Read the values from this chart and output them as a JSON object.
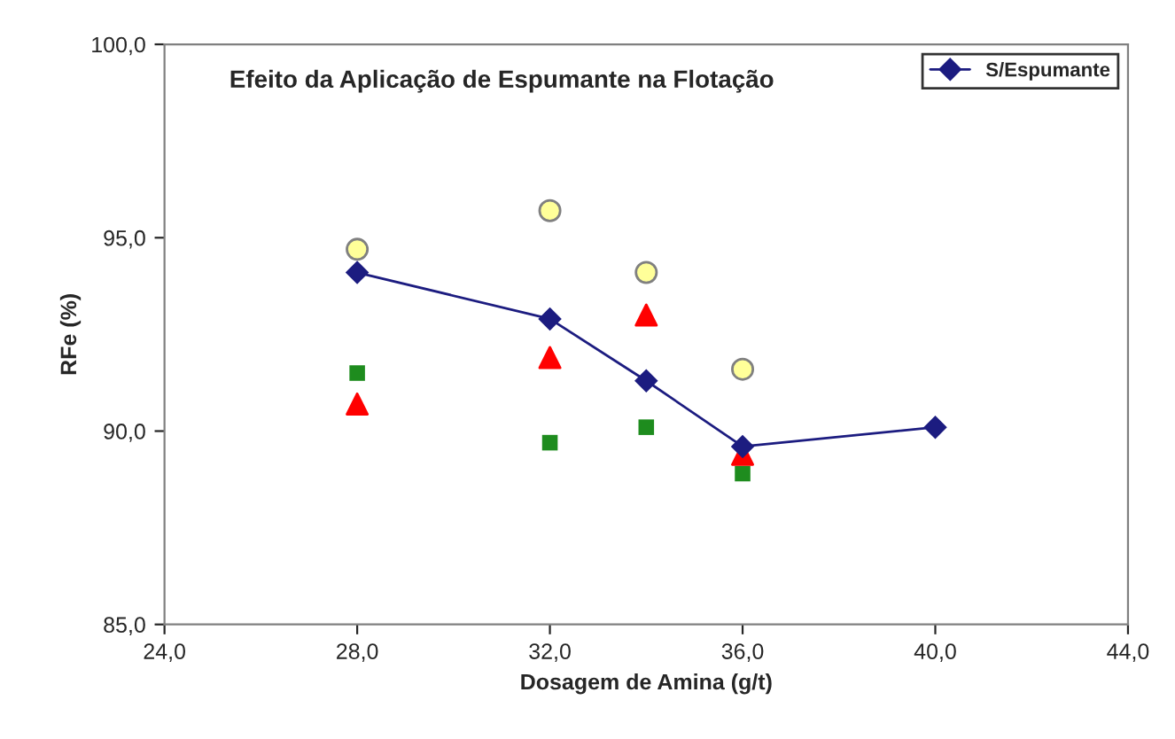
{
  "chart_data": {
    "type": "line",
    "title": "Efeito da Aplicação de Espumante na Flotação",
    "xlabel": "Dosagem de Amina (g/t)",
    "ylabel": "RFe (%)",
    "xlim": [
      24,
      44
    ],
    "xticks": [
      {
        "value": 24,
        "label": "24,0"
      },
      {
        "value": 28,
        "label": "28,0"
      },
      {
        "value": 32,
        "label": "32,0"
      },
      {
        "value": 36,
        "label": "36,0"
      },
      {
        "value": 40,
        "label": "40,0"
      },
      {
        "value": 44,
        "label": "44,0"
      }
    ],
    "ylim": [
      85,
      100
    ],
    "yticks": [
      {
        "value": 85,
        "label": "85,0"
      },
      {
        "value": 90,
        "label": "90,0"
      },
      {
        "value": 95,
        "label": "95,0"
      },
      {
        "value": 100,
        "label": "100,0"
      }
    ],
    "grid": false,
    "legend": "top right",
    "series": [
      {
        "name": "S/Espumante",
        "marker": "diamond",
        "color": "#1c1c80",
        "x": [
          28,
          32,
          34,
          36,
          40
        ],
        "values": [
          94.1,
          92.9,
          91.3,
          89.6,
          90.1
        ]
      },
      {
        "type": "scatter",
        "marker": "circle",
        "color": "#ffff99",
        "x": [
          28,
          32,
          34,
          36
        ],
        "values": [
          94.7,
          95.7,
          94.1,
          91.6
        ]
      },
      {
        "type": "scatter",
        "marker": "square",
        "color": "#1e8c1e",
        "x": [
          28,
          32,
          34,
          36
        ],
        "values": [
          91.5,
          89.7,
          90.1,
          88.9
        ]
      },
      {
        "type": "scatter",
        "marker": "triangle",
        "color": "#ff0000",
        "x": [
          28,
          32,
          34,
          36
        ],
        "values": [
          90.7,
          91.9,
          93.0,
          89.4
        ]
      }
    ]
  }
}
